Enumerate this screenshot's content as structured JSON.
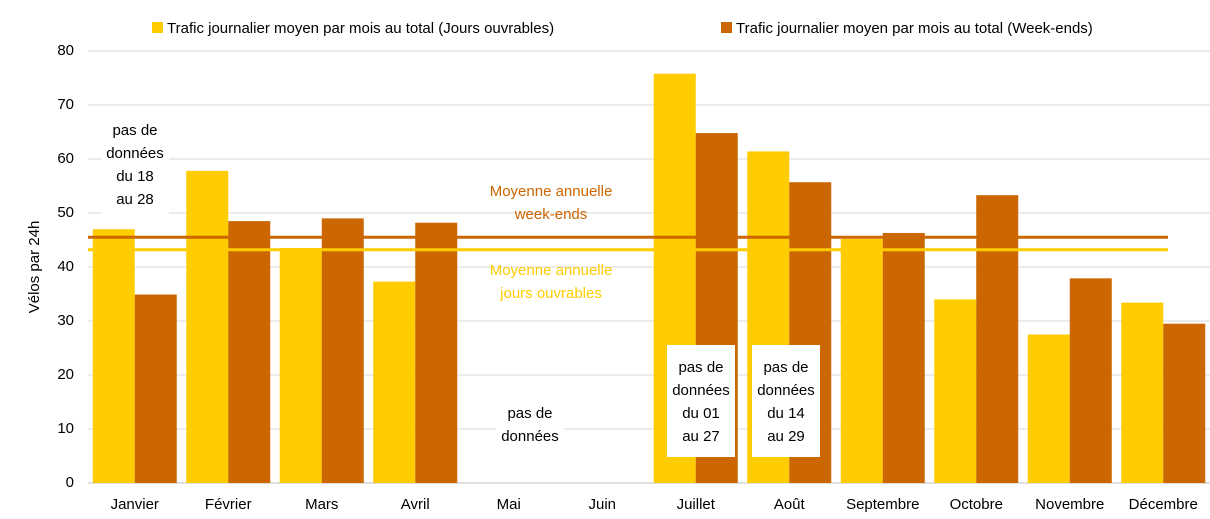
{
  "chart_data": {
    "type": "bar",
    "y_label": "Vélos par 24h",
    "categories": [
      "Janvier",
      "Février",
      "Mars",
      "Avril",
      "Mai",
      "Juin",
      "Juillet",
      "Août",
      "Septembre",
      "Octobre",
      "Novembre",
      "Décembre"
    ],
    "series": [
      {
        "name": "Trafic journalier moyen par mois au total (Jours ouvrables)",
        "color": "#ffcc00",
        "values": [
          47,
          57.8,
          43.5,
          37.3,
          null,
          null,
          75.8,
          61.4,
          45.2,
          34,
          27.5,
          33.4
        ]
      },
      {
        "name": "Trafic journalier moyen par mois au total (Week-ends)",
        "color": "#cc6600",
        "values": [
          34.9,
          48.5,
          49,
          48.2,
          null,
          null,
          64.8,
          55.7,
          46.3,
          53.3,
          37.9,
          29.5
        ]
      }
    ],
    "reference_lines": [
      {
        "label_lines": [
          "Moyenne annuelle",
          "week-ends"
        ],
        "value": 45.5,
        "color": "#cc6600"
      },
      {
        "label_lines": [
          "Moyenne annuelle",
          "jours ouvrables"
        ],
        "value": 43.2,
        "color": "#ffcc00"
      }
    ],
    "annotations": [
      {
        "lines": [
          "pas de",
          "données",
          "du 18",
          "au 28"
        ]
      },
      {
        "lines": [
          "pas de",
          "données"
        ]
      },
      {
        "lines": [
          "pas de",
          "données",
          "du 01",
          "au 27"
        ]
      },
      {
        "lines": [
          "pas de",
          "données",
          "du 14",
          "au 29"
        ]
      }
    ],
    "ylim": [
      0,
      80
    ],
    "yticks": [
      0,
      10,
      20,
      30,
      40,
      50,
      60,
      70,
      80
    ],
    "grid": true,
    "legend": "top"
  }
}
